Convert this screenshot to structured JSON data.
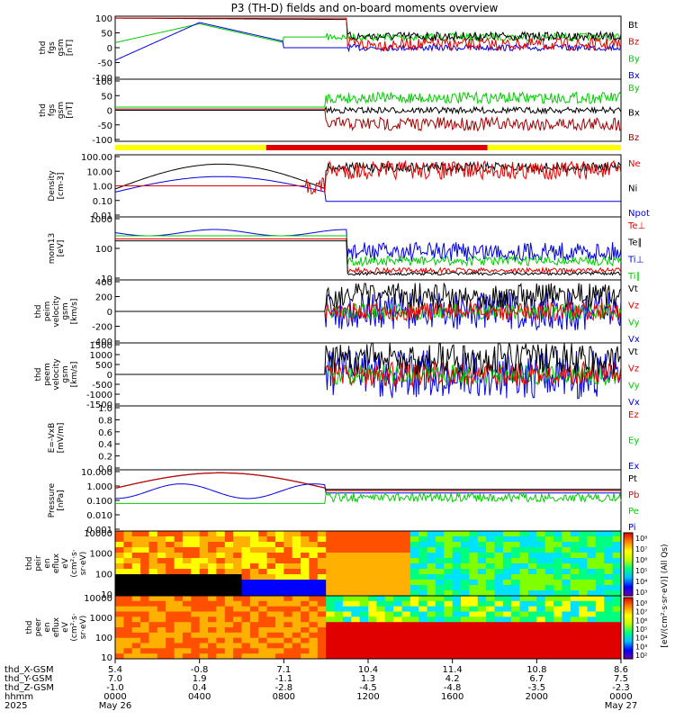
{
  "chart_data": {
    "type": "line",
    "title": "P3 (TH-D) fields and on-board moments overview",
    "bar": {
      "segments": [
        {
          "start": "0000",
          "end": "0710",
          "color": "#ffff00"
        },
        {
          "start": "0710",
          "end": "1740",
          "color": "#e00000"
        },
        {
          "start": "1740",
          "end": "0000",
          "color": "#ffff00"
        }
      ]
    },
    "panels": [
      {
        "id": "fgs",
        "ylabel": [
          "thd",
          "fgs",
          "gsm",
          "[nT]"
        ],
        "ticks": [
          "100",
          "50",
          "0",
          "-50",
          "-100"
        ],
        "legend": [
          {
            "label": "Bt",
            "color": "#000000"
          },
          {
            "label": "Bz",
            "color": "#e00000"
          },
          {
            "label": "By",
            "color": "#00cc00"
          },
          {
            "label": "Bx",
            "color": "#0000e0"
          }
        ]
      },
      {
        "id": "fgs_dsl",
        "ylabel": [
          "thd",
          "fgs",
          "gsm",
          "[nT]"
        ],
        "ticks": [
          "100",
          "50",
          "0",
          "-50",
          "-100"
        ],
        "legend": [
          {
            "label": "By",
            "color": "#00cc00"
          },
          {
            "label": "Bx",
            "color": "#000000"
          },
          {
            "label": "Bz",
            "color": "#a00000"
          }
        ]
      },
      {
        "id": "density",
        "ylabel": [
          "Density",
          "[cm-3]"
        ],
        "ticks": [
          "100.00",
          "10.00",
          "1.00",
          "0.10",
          "0.01"
        ],
        "legend": [
          {
            "label": "Ne",
            "color": "#e00000"
          },
          {
            "label": "Ni",
            "color": "#000000"
          },
          {
            "label": "Npot",
            "color": "#0000e0"
          }
        ]
      },
      {
        "id": "temp",
        "ylabel": [
          "mom13",
          "[eV]"
        ],
        "ticks": [
          "1000",
          "100",
          "10"
        ],
        "legend": [
          {
            "label": "Te⊥",
            "color": "#e00000"
          },
          {
            "label": "Te∥",
            "color": "#000000"
          },
          {
            "label": "Ti⊥",
            "color": "#0000e0"
          },
          {
            "label": "Ti∥",
            "color": "#00cc00"
          }
        ]
      },
      {
        "id": "vi",
        "ylabel": [
          "thd",
          "peim",
          "velocity",
          "gsm",
          "[km/s]"
        ],
        "ticks": [
          "400",
          "200",
          "0",
          "-200",
          "-400"
        ],
        "legend": [
          {
            "label": "Vt",
            "color": "#000000"
          },
          {
            "label": "Vz",
            "color": "#e00000"
          },
          {
            "label": "Vy",
            "color": "#00cc00"
          },
          {
            "label": "Vx",
            "color": "#0000e0"
          }
        ]
      },
      {
        "id": "ve",
        "ylabel": [
          "thd",
          "peem",
          "velocity",
          "gsm",
          "[km/s]"
        ],
        "ticks": [
          "1500",
          "1000",
          "500",
          "0",
          "-500",
          "-1000",
          "-1500"
        ],
        "legend": [
          {
            "label": "Vt",
            "color": "#000000"
          },
          {
            "label": "Vz",
            "color": "#e00000"
          },
          {
            "label": "Vy",
            "color": "#00cc00"
          },
          {
            "label": "Vx",
            "color": "#0000e0"
          }
        ]
      },
      {
        "id": "efield",
        "ylabel": [
          "E=-VxB",
          "[mV/m]"
        ],
        "ticks": [
          "1.0",
          "0.8",
          "0.6",
          "0.4",
          "0.2",
          "0.0"
        ],
        "legend": [
          {
            "label": "Ez",
            "color": "#e00000"
          },
          {
            "label": "Ey",
            "color": "#00cc00"
          },
          {
            "label": "Ex",
            "color": "#0000e0"
          }
        ]
      },
      {
        "id": "pressure",
        "ylabel": [
          "Pressure",
          "[nPa]"
        ],
        "ticks": [
          "10.000",
          "1.000",
          "0.100",
          "0.010",
          "0.001"
        ],
        "legend": [
          {
            "label": "Pt",
            "color": "#000000"
          },
          {
            "label": "Pb",
            "color": "#e00000"
          },
          {
            "label": "Pe",
            "color": "#00cc00"
          },
          {
            "label": "Pi",
            "color": "#0000e0"
          }
        ]
      },
      {
        "id": "ispec",
        "ylabel": [
          "thd",
          "peir",
          "en",
          "eflux",
          "eV",
          "(cm²·s·",
          "sr·eV)"
        ],
        "ticks": [
          "10000",
          "1000",
          "100",
          "10"
        ]
      },
      {
        "id": "espec",
        "ylabel": [
          "thd",
          "peer",
          "en",
          "eflux",
          "eV",
          "(cm²·s·",
          "sr·eV)"
        ],
        "ticks": [
          "10000",
          "1000",
          "100",
          "10"
        ]
      }
    ],
    "colorbar": {
      "label": "[eV/(cm²·s·sr·eV)] (All Qs)",
      "ticks1": [
        "10⁸",
        "10⁷",
        "10⁶",
        "10⁵",
        "10⁴",
        "10³"
      ],
      "ticks2": [
        "10⁸",
        "10⁷",
        "10⁶",
        "10⁵",
        "10⁴",
        "10³",
        "10²"
      ]
    },
    "xaxis": {
      "row_labels": [
        "thd_X-GSM",
        "thd_Y-GSM",
        "thd_Z-GSM",
        "hhmm",
        "2025"
      ],
      "columns": [
        {
          "x": "5.4",
          "y": "7.0",
          "z": "-1.0",
          "t": "0000",
          "d": "May 26"
        },
        {
          "x": "-0.8",
          "y": "1.9",
          "z": "0.4",
          "t": "0400",
          "d": ""
        },
        {
          "x": "7.1",
          "y": "-1.1",
          "z": "-2.8",
          "t": "0800",
          "d": ""
        },
        {
          "x": "10.4",
          "y": "1.3",
          "z": "-4.5",
          "t": "1200",
          "d": ""
        },
        {
          "x": "11.4",
          "y": "4.2",
          "z": "-4.8",
          "t": "1600",
          "d": ""
        },
        {
          "x": "10.8",
          "y": "6.7",
          "z": "-3.5",
          "t": "2000",
          "d": ""
        },
        {
          "x": "8.6",
          "y": "7.5",
          "z": "-2.3",
          "t": "0000",
          "d": "May 27"
        }
      ]
    }
  }
}
